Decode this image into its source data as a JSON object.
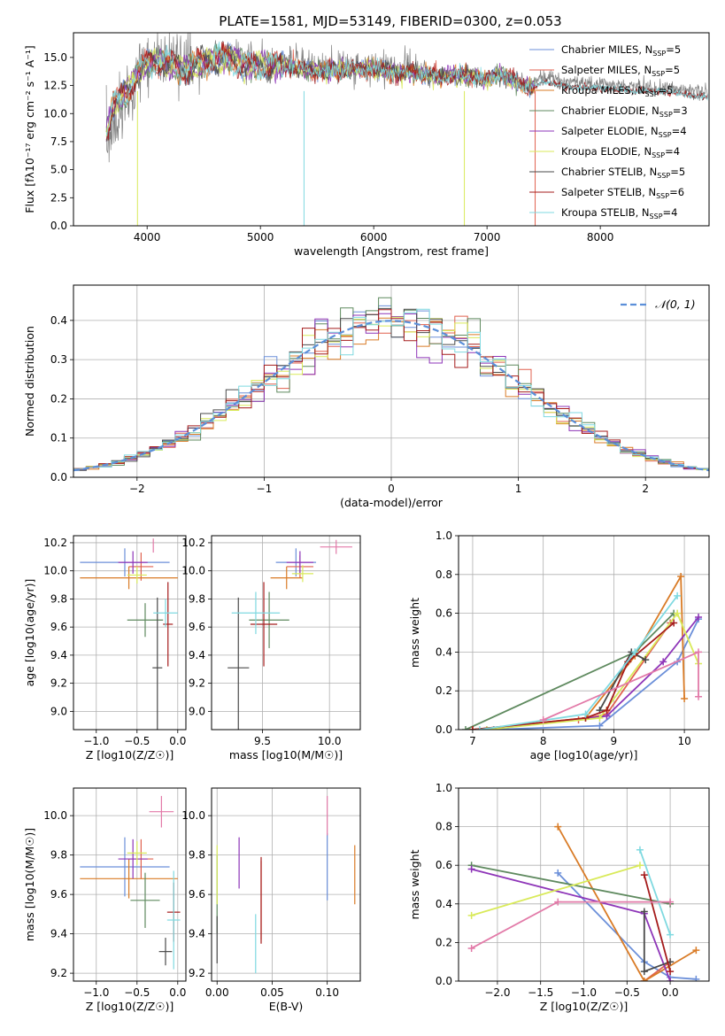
{
  "figure_title": "PLATE=1581, MJD=53149, FIBERID=0300, z=0.053",
  "chart_data": [
    {
      "id": "spectrum",
      "type": "line",
      "title": "PLATE=1581, MJD=53149, FIBERID=0300, z=0.053",
      "xlabel": "wavelength [Angstrom, rest frame]",
      "ylabel": "Flux [fλ10⁻¹⁷ erg cm⁻² s⁻¹ A⁻¹]",
      "xlim": [
        3350,
        8960
      ],
      "ylim": [
        0,
        17.2
      ],
      "xticks": [
        "4000",
        "5000",
        "6000",
        "7000",
        "8000"
      ],
      "yticks": [
        "0.0",
        "2.5",
        "5.0",
        "7.5",
        "10.0",
        "12.5",
        "15.0"
      ],
      "legend_position": "top-right",
      "series": [
        {
          "name": "Chabrier MILES, N_SSP=5",
          "color": "#6b8fd9"
        },
        {
          "name": "Salpeter MILES, N_SSP=5",
          "color": "#e0614f"
        },
        {
          "name": "Kroupa MILES, N_SSP=5",
          "color": "#d97b26"
        },
        {
          "name": "Chabrier ELODIE, N_SSP=3",
          "color": "#5f8a5f"
        },
        {
          "name": "Salpeter ELODIE, N_SSP=4",
          "color": "#8e35b8"
        },
        {
          "name": "Kroupa ELODIE, N_SSP=4",
          "color": "#d9ea5a"
        },
        {
          "name": "Chabrier STELIB, N_SSP=5",
          "color": "#4a4a4a"
        },
        {
          "name": "Salpeter STELIB, N_SSP=6",
          "color": "#a51c1c"
        },
        {
          "name": "Kroupa STELIB, N_SSP=4",
          "color": "#7fd9e0"
        }
      ],
      "data_color": "#808080",
      "data_note_points": {
        "x": [
          3640,
          3700,
          3800,
          3900,
          4000,
          4100,
          4200,
          4340,
          4500,
          4700,
          4861,
          5000,
          5200,
          5400,
          5600,
          5800,
          6000,
          6200,
          6400,
          6563,
          6700,
          6900,
          7000,
          7100,
          7200,
          7300,
          7400,
          7500,
          7700,
          7900,
          8100,
          8300,
          8500,
          8700,
          8950
        ],
        "y": [
          8.5,
          11.0,
          12.0,
          13.5,
          14.8,
          15.0,
          14.6,
          14.2,
          14.9,
          15.3,
          14.5,
          14.7,
          14.5,
          14.2,
          14.1,
          14.3,
          14.2,
          14.0,
          13.9,
          13.5,
          13.7,
          13.6,
          13.2,
          13.8,
          13.4,
          12.9,
          12.6,
          13.3,
          12.8,
          12.7,
          12.6,
          12.4,
          12.4,
          12.2,
          11.8
        ]
      }
    },
    {
      "id": "residuals",
      "type": "bar",
      "xlabel": "(data-model)/error",
      "ylabel": "Normed distribution",
      "xlim": [
        -2.5,
        2.5
      ],
      "ylim": [
        0,
        0.49
      ],
      "xticks": [
        "−2",
        "−1",
        "0",
        "1",
        "2"
      ],
      "yticks": [
        "0.0",
        "0.1",
        "0.2",
        "0.3",
        "0.4"
      ],
      "legend": [
        "𝒩(0, 1)"
      ],
      "legend_position": "top-right",
      "gaussian": {
        "mu": 0,
        "sigma": 1,
        "color": "#5b8fd9"
      },
      "bin_width": 0.1
    },
    {
      "id": "age_vs_Z",
      "type": "scatter",
      "xlabel": "Z [log10(Z/Z☉)]",
      "ylabel": "age [log10(age/yr)]",
      "xlim": [
        -1.28,
        0.1
      ],
      "ylim": [
        8.87,
        10.25
      ],
      "xticks": [
        "−1.0",
        "−0.5",
        "0.0"
      ],
      "yticks": [
        "9.0",
        "9.2",
        "9.4",
        "9.6",
        "9.8",
        "10.0",
        "10.2"
      ],
      "points": [
        {
          "x": -0.65,
          "y": 10.06,
          "xerr": 0.55,
          "yerr": 0.1,
          "color": "#6b8fd9"
        },
        {
          "x": -0.45,
          "y": 10.03,
          "xerr": 0.15,
          "yerr": 0.1,
          "color": "#e0614f"
        },
        {
          "x": -0.6,
          "y": 9.95,
          "xerr": 0.6,
          "yerr": 0.08,
          "color": "#d97b26"
        },
        {
          "x": -0.4,
          "y": 9.65,
          "xerr": 0.22,
          "yerr": 0.12,
          "color": "#5f8a5f"
        },
        {
          "x": -0.55,
          "y": 10.06,
          "xerr": 0.18,
          "yerr": 0.08,
          "color": "#8e35b8"
        },
        {
          "x": -0.5,
          "y": 9.97,
          "xerr": 0.12,
          "yerr": 0.06,
          "color": "#d9ea5a"
        },
        {
          "x": -0.25,
          "y": 9.31,
          "xerr": 0.06,
          "yerr": 0.5,
          "color": "#4a4a4a"
        },
        {
          "x": -0.12,
          "y": 9.62,
          "xerr": 0.06,
          "yerr": 0.3,
          "color": "#a51c1c"
        },
        {
          "x": -0.15,
          "y": 9.7,
          "xerr": 0.15,
          "yerr": 0.1,
          "color": "#7fd9e0"
        },
        {
          "x": -0.3,
          "y": 10.18,
          "xerr": 0.0,
          "yerr": 0.05,
          "color": "#e27aa8"
        }
      ]
    },
    {
      "id": "age_vs_mass",
      "type": "scatter",
      "xlabel": "mass [log10(M/M☉)]",
      "ylabel": "",
      "xlim": [
        9.12,
        10.23
      ],
      "ylim": [
        8.87,
        10.25
      ],
      "xticks": [
        "9.5",
        "10.0"
      ],
      "yticks": [
        "9.0",
        "9.2",
        "9.4",
        "9.6",
        "9.8",
        "10.0",
        "10.2"
      ],
      "points": [
        {
          "x": 9.75,
          "y": 10.06,
          "xerr": 0.15,
          "yerr": 0.1,
          "color": "#6b8fd9"
        },
        {
          "x": 9.78,
          "y": 10.03,
          "xerr": 0.1,
          "yerr": 0.08,
          "color": "#e0614f"
        },
        {
          "x": 9.68,
          "y": 9.95,
          "xerr": 0.12,
          "yerr": 0.08,
          "color": "#d97b26"
        },
        {
          "x": 9.55,
          "y": 9.65,
          "xerr": 0.15,
          "yerr": 0.2,
          "color": "#5f8a5f"
        },
        {
          "x": 9.78,
          "y": 10.06,
          "xerr": 0.1,
          "yerr": 0.08,
          "color": "#8e35b8"
        },
        {
          "x": 9.8,
          "y": 9.98,
          "xerr": 0.08,
          "yerr": 0.06,
          "color": "#d9ea5a"
        },
        {
          "x": 9.32,
          "y": 9.31,
          "xerr": 0.08,
          "yerr": 0.5,
          "color": "#4a4a4a"
        },
        {
          "x": 9.51,
          "y": 9.62,
          "xerr": 0.1,
          "yerr": 0.3,
          "color": "#a51c1c"
        },
        {
          "x": 9.45,
          "y": 9.7,
          "xerr": 0.18,
          "yerr": 0.15,
          "color": "#7fd9e0"
        },
        {
          "x": 10.05,
          "y": 10.17,
          "xerr": 0.12,
          "yerr": 0.05,
          "color": "#e27aa8"
        }
      ]
    },
    {
      "id": "massweight_vs_age",
      "type": "line",
      "xlabel": "age [log10(age/yr)]",
      "ylabel": "mass weight",
      "xlim": [
        6.8,
        10.35
      ],
      "ylim": [
        0,
        1.0
      ],
      "xticks": [
        "7",
        "8",
        "9",
        "10"
      ],
      "yticks": [
        "0.0",
        "0.2",
        "0.4",
        "0.6",
        "0.8",
        "1.0"
      ],
      "series": [
        {
          "color": "#6b8fd9",
          "x": [
            7.3,
            8.8,
            9.9,
            10.2
          ],
          "y": [
            0.0,
            0.02,
            0.35,
            0.57
          ]
        },
        {
          "color": "#e0614f",
          "x": [
            7.0,
            8.5,
            8.9,
            9.8
          ],
          "y": [
            0.0,
            0.05,
            0.08,
            0.55
          ]
        },
        {
          "color": "#d97b26",
          "x": [
            7.0,
            8.6,
            9.3,
            9.95,
            10.0
          ],
          "y": [
            0.0,
            0.06,
            0.38,
            0.79,
            0.16
          ]
        },
        {
          "color": "#5f8a5f",
          "x": [
            6.9,
            9.3,
            9.85
          ],
          "y": [
            0.0,
            0.4,
            0.6
          ]
        },
        {
          "color": "#8e35b8",
          "x": [
            7.2,
            8.9,
            9.7,
            10.2
          ],
          "y": [
            0.0,
            0.07,
            0.35,
            0.58
          ]
        },
        {
          "color": "#d9ea5a",
          "x": [
            7.2,
            8.8,
            9.9,
            10.2
          ],
          "y": [
            0.0,
            0.06,
            0.6,
            0.34
          ]
        },
        {
          "color": "#4a4a4a",
          "x": [
            8.8,
            9.25,
            9.45
          ],
          "y": [
            0.1,
            0.4,
            0.36
          ]
        },
        {
          "color": "#a51c1c",
          "x": [
            7.0,
            8.6,
            8.9,
            9.2,
            9.85
          ],
          "y": [
            0.0,
            0.06,
            0.1,
            0.35,
            0.55
          ]
        },
        {
          "color": "#7fd9e0",
          "x": [
            7.1,
            8.6,
            9.3,
            9.9
          ],
          "y": [
            0.0,
            0.08,
            0.4,
            0.69
          ]
        },
        {
          "color": "#e27aa8",
          "x": [
            8.0,
            10.2,
            10.2
          ],
          "y": [
            0.05,
            0.4,
            0.17
          ]
        }
      ]
    },
    {
      "id": "mass_vs_Z",
      "type": "scatter",
      "xlabel": "Z [log10(Z/Z☉)]",
      "ylabel": "mass [log10(M/M☉)]",
      "xlim": [
        -1.28,
        0.1
      ],
      "ylim": [
        9.16,
        10.14
      ],
      "xticks": [
        "−1.0",
        "−0.5",
        "0.0"
      ],
      "yticks": [
        "9.2",
        "9.4",
        "9.6",
        "9.8",
        "10.0"
      ],
      "points": [
        {
          "x": -0.65,
          "y": 9.74,
          "xerr": 0.55,
          "yerr": 0.15,
          "color": "#6b8fd9"
        },
        {
          "x": -0.45,
          "y": 9.78,
          "xerr": 0.15,
          "yerr": 0.1,
          "color": "#e0614f"
        },
        {
          "x": -0.6,
          "y": 9.68,
          "xerr": 0.6,
          "yerr": 0.1,
          "color": "#d97b26"
        },
        {
          "x": -0.4,
          "y": 9.57,
          "xerr": 0.18,
          "yerr": 0.14,
          "color": "#5f8a5f"
        },
        {
          "x": -0.55,
          "y": 9.78,
          "xerr": 0.18,
          "yerr": 0.1,
          "color": "#8e35b8"
        },
        {
          "x": -0.5,
          "y": 9.81,
          "xerr": 0.12,
          "yerr": 0.06,
          "color": "#d9ea5a"
        },
        {
          "x": -0.15,
          "y": 9.31,
          "xerr": 0.08,
          "yerr": 0.07,
          "color": "#4a4a4a"
        },
        {
          "x": -0.05,
          "y": 9.51,
          "xerr": 0.08,
          "yerr": 0.15,
          "color": "#a51c1c"
        },
        {
          "x": -0.05,
          "y": 9.47,
          "xerr": 0.08,
          "yerr": 0.25,
          "color": "#7fd9e0"
        },
        {
          "x": -0.2,
          "y": 10.02,
          "xerr": 0.15,
          "yerr": 0.08,
          "color": "#e27aa8"
        }
      ]
    },
    {
      "id": "mass_vs_ebv",
      "type": "scatter",
      "xlabel": "E(B-V)",
      "ylabel": "",
      "xlim": [
        -0.005,
        0.13
      ],
      "ylim": [
        9.16,
        10.14
      ],
      "xticks": [
        "0.00",
        "0.05",
        "0.10"
      ],
      "yticks": [
        "9.2",
        "9.4",
        "9.6",
        "9.8",
        "10.0"
      ],
      "points": [
        {
          "x": 0.1,
          "y": 9.74,
          "yerr": 0.17,
          "color": "#6b8fd9"
        },
        {
          "x": 0.04,
          "y": 9.57,
          "yerr": 0.2,
          "color": "#e0614f"
        },
        {
          "x": 0.125,
          "y": 9.7,
          "yerr": 0.15,
          "color": "#d97b26"
        },
        {
          "x": 0.0,
          "y": 9.6,
          "yerr": 0.2,
          "color": "#5f8a5f"
        },
        {
          "x": 0.02,
          "y": 9.76,
          "yerr": 0.13,
          "color": "#8e35b8"
        },
        {
          "x": 0.0,
          "y": 9.7,
          "yerr": 0.15,
          "color": "#d9ea5a"
        },
        {
          "x": 0.0,
          "y": 9.37,
          "yerr": 0.12,
          "color": "#4a4a4a"
        },
        {
          "x": 0.04,
          "y": 9.57,
          "yerr": 0.22,
          "color": "#a51c1c"
        },
        {
          "x": 0.035,
          "y": 9.35,
          "yerr": 0.15,
          "color": "#7fd9e0"
        },
        {
          "x": 0.1,
          "y": 10.0,
          "yerr": 0.1,
          "color": "#e27aa8"
        }
      ]
    },
    {
      "id": "massweight_vs_Z",
      "type": "line",
      "xlabel": "Z [log10(Z/Z☉)]",
      "ylabel": "mass weight",
      "xlim": [
        -2.45,
        0.45
      ],
      "ylim": [
        0,
        1.0
      ],
      "xticks": [
        "−2.0",
        "−1.5",
        "−1.0",
        "−0.5",
        "0.0"
      ],
      "yticks": [
        "0.0",
        "0.2",
        "0.4",
        "0.6",
        "0.8",
        "1.0"
      ],
      "series": [
        {
          "color": "#6b8fd9",
          "x": [
            -1.3,
            -0.3,
            0.0,
            0.3
          ],
          "y": [
            0.56,
            0.1,
            0.02,
            0.01
          ]
        },
        {
          "color": "#e0614f",
          "x": [
            -0.3,
            0.0
          ],
          "y": [
            0.0,
            0.1
          ]
        },
        {
          "color": "#d97b26",
          "x": [
            -1.3,
            -0.3,
            0.3
          ],
          "y": [
            0.8,
            0.0,
            0.16
          ]
        },
        {
          "color": "#5f8a5f",
          "x": [
            -2.3,
            0.0
          ],
          "y": [
            0.6,
            0.4
          ]
        },
        {
          "color": "#8e35b8",
          "x": [
            -2.3,
            -0.3,
            0.0
          ],
          "y": [
            0.58,
            0.35,
            0.0
          ]
        },
        {
          "color": "#d9ea5a",
          "x": [
            -2.3,
            -0.35
          ],
          "y": [
            0.34,
            0.6
          ]
        },
        {
          "color": "#4a4a4a",
          "x": [
            -0.3,
            -0.3,
            0.0
          ],
          "y": [
            0.36,
            0.05,
            0.1
          ]
        },
        {
          "color": "#a51c1c",
          "x": [
            -0.3,
            0.0
          ],
          "y": [
            0.55,
            0.05
          ]
        },
        {
          "color": "#7fd9e0",
          "x": [
            -0.35,
            0.0
          ],
          "y": [
            0.68,
            0.24
          ]
        },
        {
          "color": "#e27aa8",
          "x": [
            -2.3,
            -1.3,
            0.0
          ],
          "y": [
            0.17,
            0.41,
            0.41
          ]
        }
      ]
    }
  ]
}
